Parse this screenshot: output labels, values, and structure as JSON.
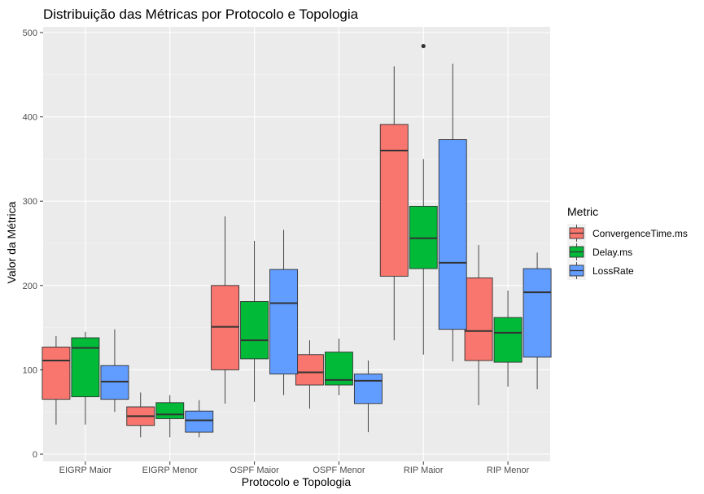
{
  "chart_data": {
    "type": "boxplot",
    "title": "Distribuição das Métricas por Protocolo e Topologia",
    "xlabel": "Protocolo e Topologia",
    "ylabel": "Valor da Métrica",
    "ylim": [
      0,
      510
    ],
    "yticks": [
      0,
      100,
      200,
      300,
      400,
      500
    ],
    "categories": [
      "EIGRP Maior",
      "EIGRP Menor",
      "OSPF Maior",
      "OSPF Menor",
      "RIP Maior",
      "RIP Menor"
    ],
    "legend": {
      "title": "Metric",
      "position": "right"
    },
    "grid": true,
    "series": [
      {
        "name": "ConvergenceTime.ms",
        "color": "#F8766D",
        "boxes": [
          {
            "min": 35,
            "q1": 65,
            "median": 111,
            "q3": 127,
            "max": 140,
            "outliers": []
          },
          {
            "min": 20,
            "q1": 34,
            "median": 45,
            "q3": 56,
            "max": 73,
            "outliers": []
          },
          {
            "min": 60,
            "q1": 100,
            "median": 151,
            "q3": 200,
            "max": 282,
            "outliers": []
          },
          {
            "min": 54,
            "q1": 82,
            "median": 97,
            "q3": 118,
            "max": 135,
            "outliers": []
          },
          {
            "min": 135,
            "q1": 211,
            "median": 360,
            "q3": 391,
            "max": 460,
            "outliers": []
          },
          {
            "min": 58,
            "q1": 111,
            "median": 146,
            "q3": 209,
            "max": 248,
            "outliers": []
          }
        ]
      },
      {
        "name": "Delay.ms",
        "color": "#00BA38",
        "boxes": [
          {
            "min": 35,
            "q1": 68,
            "median": 126,
            "q3": 138,
            "max": 145,
            "outliers": []
          },
          {
            "min": 20,
            "q1": 42,
            "median": 47,
            "q3": 61,
            "max": 70,
            "outliers": []
          },
          {
            "min": 62,
            "q1": 113,
            "median": 135,
            "q3": 181,
            "max": 253,
            "outliers": []
          },
          {
            "min": 70,
            "q1": 82,
            "median": 88,
            "q3": 121,
            "max": 137,
            "outliers": []
          },
          {
            "min": 118,
            "q1": 220,
            "median": 256,
            "q3": 294,
            "max": 350,
            "outliers": [
              484
            ]
          },
          {
            "min": 80,
            "q1": 109,
            "median": 144,
            "q3": 162,
            "max": 194,
            "outliers": []
          }
        ]
      },
      {
        "name": "LossRate",
        "color": "#619CFF",
        "boxes": [
          {
            "min": 50,
            "q1": 65,
            "median": 86,
            "q3": 105,
            "max": 148,
            "outliers": []
          },
          {
            "min": 20,
            "q1": 26,
            "median": 40,
            "q3": 51,
            "max": 64,
            "outliers": []
          },
          {
            "min": 70,
            "q1": 95,
            "median": 179,
            "q3": 219,
            "max": 266,
            "outliers": []
          },
          {
            "min": 26,
            "q1": 60,
            "median": 87,
            "q3": 95,
            "max": 111,
            "outliers": []
          },
          {
            "min": 110,
            "q1": 148,
            "median": 227,
            "q3": 373,
            "max": 463,
            "outliers": []
          },
          {
            "min": 77,
            "q1": 115,
            "median": 192,
            "q3": 220,
            "max": 239,
            "outliers": []
          }
        ]
      }
    ]
  }
}
